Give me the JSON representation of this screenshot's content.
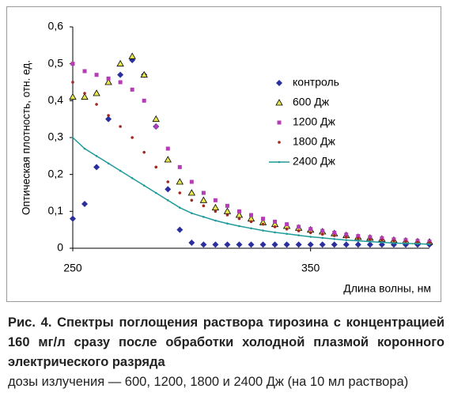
{
  "chart_data": {
    "type": "scatter",
    "xlabel": "Длина волны, нм",
    "ylabel": "Оптическая плотность, отн. ед.",
    "x": [
      250,
      255,
      260,
      265,
      270,
      275,
      280,
      285,
      290,
      295,
      300,
      305,
      310,
      315,
      320,
      325,
      330,
      335,
      340,
      345,
      350,
      355,
      360,
      365,
      370,
      375,
      380,
      385,
      390,
      395,
      400
    ],
    "xlim": [
      250,
      400
    ],
    "xticks": [
      250,
      350
    ],
    "ylim": [
      0,
      0.6
    ],
    "yticks": [
      0,
      {
        "value": 0.1,
        "label": "0,1"
      },
      {
        "value": 0.2,
        "label": "0,2"
      },
      {
        "value": 0.3,
        "label": "0,3"
      },
      {
        "value": 0.4,
        "label": "0,4"
      },
      {
        "value": 0.5,
        "label": "0,5"
      },
      {
        "value": 0.6,
        "label": "0,6"
      }
    ],
    "grid": false,
    "legend": "right",
    "series": [
      {
        "name": "контроль",
        "color": "#2b2f9e",
        "marker": "diamond",
        "values": [
          0.08,
          0.12,
          0.22,
          0.35,
          0.47,
          0.51,
          0.47,
          0.33,
          0.16,
          0.05,
          0.015,
          0.01,
          0.01,
          0.01,
          0.01,
          0.01,
          0.01,
          0.01,
          0.01,
          0.01,
          0.01,
          0.01,
          0.01,
          0.01,
          0.01,
          0.01,
          0.01,
          0.01,
          0.01,
          0.01,
          0.01
        ]
      },
      {
        "name": "600 Дж",
        "color": "#e8e84a",
        "marker": "triangle",
        "values": [
          0.41,
          0.41,
          0.42,
          0.45,
          0.5,
          0.52,
          0.47,
          0.35,
          0.24,
          0.18,
          0.15,
          0.13,
          0.11,
          0.1,
          0.09,
          0.08,
          0.07,
          0.065,
          0.06,
          0.055,
          0.05,
          0.045,
          0.04,
          0.035,
          0.03,
          0.028,
          0.025,
          0.022,
          0.02,
          0.018,
          0.017
        ]
      },
      {
        "name": "1200 Дж",
        "color": "#b43cb4",
        "marker": "square",
        "values": [
          0.5,
          0.48,
          0.47,
          0.46,
          0.45,
          0.43,
          0.4,
          0.33,
          0.27,
          0.22,
          0.18,
          0.15,
          0.13,
          0.115,
          0.1,
          0.09,
          0.08,
          0.072,
          0.065,
          0.058,
          0.052,
          0.047,
          0.042,
          0.037,
          0.033,
          0.03,
          0.027,
          0.024,
          0.022,
          0.02,
          0.018
        ]
      },
      {
        "name": "1800 Дж",
        "color": "#a0281e",
        "marker": "dot",
        "values": [
          0.45,
          0.42,
          0.39,
          0.36,
          0.33,
          0.3,
          0.26,
          0.22,
          0.18,
          0.15,
          0.13,
          0.115,
          0.1,
          0.09,
          0.08,
          0.072,
          0.065,
          0.058,
          0.052,
          0.047,
          0.042,
          0.038,
          0.034,
          0.03,
          0.027,
          0.024,
          0.022,
          0.02,
          0.018,
          0.016,
          0.015
        ]
      },
      {
        "name": "2400 Дж",
        "color": "#1f9a9a",
        "marker": "line",
        "values": [
          0.3,
          0.27,
          0.25,
          0.23,
          0.21,
          0.19,
          0.17,
          0.15,
          0.13,
          0.11,
          0.095,
          0.085,
          0.075,
          0.067,
          0.06,
          0.054,
          0.048,
          0.043,
          0.039,
          0.035,
          0.031,
          0.028,
          0.025,
          0.022,
          0.02,
          0.018,
          0.016,
          0.014,
          0.013,
          0.012,
          0.011
        ]
      }
    ]
  },
  "caption": {
    "title": "Рис. 4. Спектры поглощения раствора тирозина с концентрацией 160 мг/л сразу после обработки холодной плазмой коронного электрического разряда",
    "text": "дозы излучения — 600, 1200, 1800 и 2400 Дж (на 10 мл раствора)"
  }
}
